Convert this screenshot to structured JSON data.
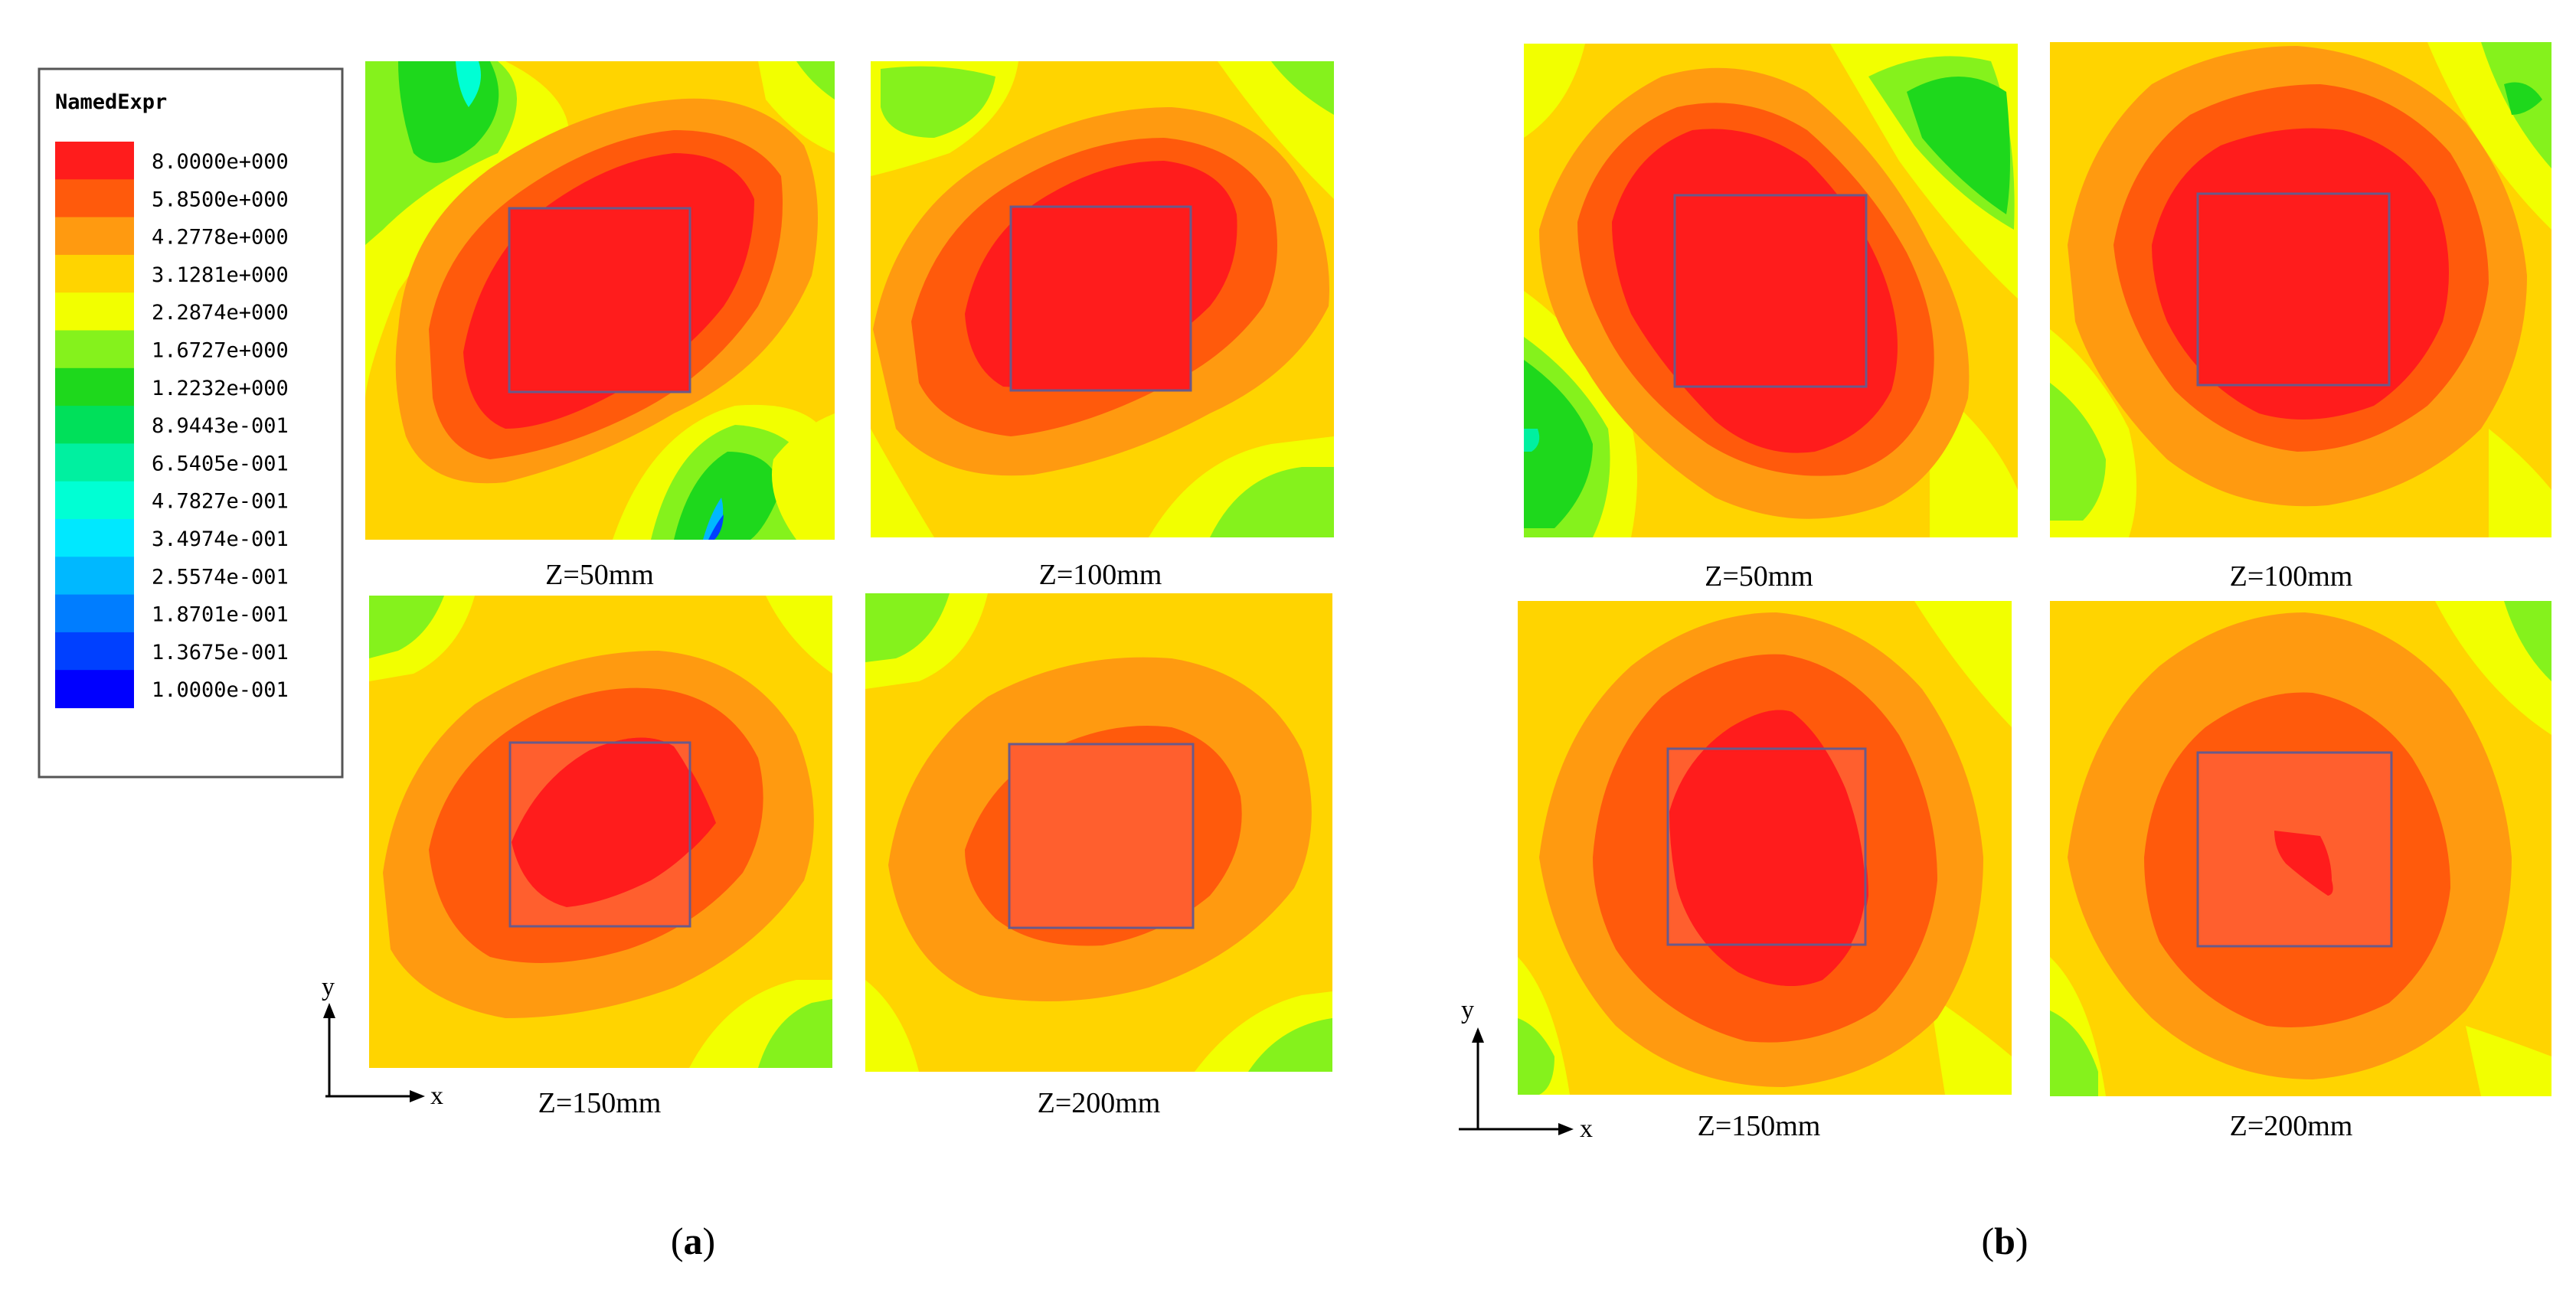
{
  "colors": {
    "c0": "#ff1c1c",
    "c1": "#ff5a0c",
    "c2": "#ff9a10",
    "c3": "#ffd400",
    "c4": "#f2ff00",
    "c5": "#85f21c",
    "c6": "#1ed81c",
    "c7": "#00e05a",
    "c8": "#00f0a0",
    "c9": "#00ffd4",
    "c10": "#00e8ff",
    "c11": "#00b8ff",
    "c12": "#007dff",
    "c13": "#0040ff",
    "c14": "#0000ff",
    "box_outline": "#6a5a8a",
    "inner_square_lower": "#ff5f2e"
  },
  "legend": {
    "title": "NamedExpr",
    "entries": [
      {
        "label": "8.0000e+000",
        "color": "c0"
      },
      {
        "label": "5.8500e+000",
        "color": "c1"
      },
      {
        "label": "4.2778e+000",
        "color": "c2"
      },
      {
        "label": "3.1281e+000",
        "color": "c3"
      },
      {
        "label": "2.2874e+000",
        "color": "c4"
      },
      {
        "label": "1.6727e+000",
        "color": "c5"
      },
      {
        "label": "1.2232e+000",
        "color": "c6"
      },
      {
        "label": "8.9443e-001",
        "color": "c7"
      },
      {
        "label": "6.5405e-001",
        "color": "c8"
      },
      {
        "label": "4.7827e-001",
        "color": "c9"
      },
      {
        "label": "3.4974e-001",
        "color": "c10"
      },
      {
        "label": "2.5574e-001",
        "color": "c11"
      },
      {
        "label": "1.8701e-001",
        "color": "c12"
      },
      {
        "label": "1.3675e-001",
        "color": "c13"
      },
      {
        "label": "1.0000e-001",
        "color": "c14"
      }
    ]
  },
  "group_a": {
    "caption_open": "(",
    "caption_letter": "a",
    "caption_close": ")",
    "axis_x": "x",
    "axis_y": "y",
    "panels": [
      {
        "label": "Z=50mm"
      },
      {
        "label": "Z=100mm"
      },
      {
        "label": "Z=150mm"
      },
      {
        "label": "Z=200mm"
      }
    ]
  },
  "group_b": {
    "caption_open": "(",
    "caption_letter": "b",
    "caption_close": ")",
    "axis_x": "x",
    "axis_y": "y",
    "panels": [
      {
        "label": "Z=50mm"
      },
      {
        "label": "Z=100mm"
      },
      {
        "label": "Z=150mm"
      },
      {
        "label": "Z=200mm"
      }
    ]
  }
}
